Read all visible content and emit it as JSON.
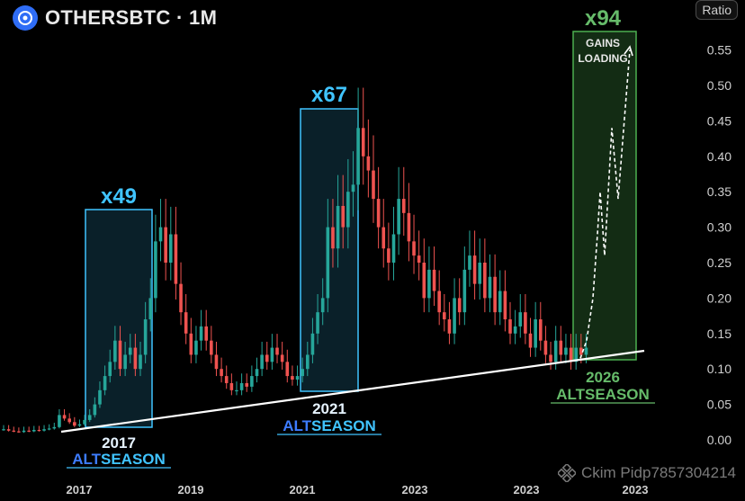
{
  "header": {
    "title": "OTHERSBTC · 1M",
    "scale_label": "Ratio"
  },
  "watermark": {
    "text": "Ckim Pidp7857304214"
  },
  "colors": {
    "background": "#000000",
    "up_candle": "#26a69a",
    "down_candle": "#ef5350",
    "trendline": "#ffffff",
    "cycle_box": "#40c4ff",
    "cycle_label": "#40c4ff",
    "future_box": "#4caf50",
    "future_label": "#66bb6a",
    "alt_word": "#3d7cff"
  },
  "chart_data": {
    "type": "candlestick",
    "title": "OTHERSBTC · 1M",
    "ylabel": "Ratio",
    "ylim": [
      0.0,
      0.6
    ],
    "y_ticks": [
      0.0,
      0.05,
      0.1,
      0.15,
      0.2,
      0.25,
      0.3,
      0.35,
      0.4,
      0.45,
      0.5,
      0.55
    ],
    "x_ticks": [
      "2017",
      "2019",
      "2021",
      "2023",
      "2023",
      "2023"
    ],
    "annotations": {
      "cycles": [
        {
          "multiplier": "x49",
          "year": "2017",
          "word_a": "ALT",
          "word_b": "SEASON"
        },
        {
          "multiplier": "x67",
          "year": "2021",
          "word_a": "ALT",
          "word_b": "SEASON"
        },
        {
          "multiplier": "x94",
          "year": "2026",
          "word_a": "ALT",
          "word_b": "SEASON",
          "note": "GAINS LOADING"
        }
      ]
    },
    "trendline": {
      "start": 0.01,
      "end": 0.125
    },
    "projection": [
      0.115,
      0.14,
      0.2,
      0.29,
      0.35,
      0.26,
      0.44,
      0.34,
      0.55
    ],
    "series_close": [
      0.015,
      0.013,
      0.012,
      0.011,
      0.013,
      0.012,
      0.014,
      0.013,
      0.015,
      0.016,
      0.018,
      0.035,
      0.03,
      0.025,
      0.02,
      0.022,
      0.028,
      0.035,
      0.05,
      0.07,
      0.09,
      0.11,
      0.14,
      0.1,
      0.12,
      0.13,
      0.1,
      0.12,
      0.17,
      0.2,
      0.28,
      0.3,
      0.25,
      0.29,
      0.22,
      0.18,
      0.15,
      0.12,
      0.14,
      0.16,
      0.14,
      0.12,
      0.1,
      0.09,
      0.08,
      0.07,
      0.07,
      0.08,
      0.075,
      0.09,
      0.1,
      0.12,
      0.11,
      0.13,
      0.12,
      0.11,
      0.09,
      0.085,
      0.09,
      0.1,
      0.12,
      0.15,
      0.18,
      0.2,
      0.3,
      0.27,
      0.33,
      0.3,
      0.35,
      0.36,
      0.44,
      0.4,
      0.38,
      0.34,
      0.3,
      0.27,
      0.25,
      0.29,
      0.34,
      0.32,
      0.28,
      0.26,
      0.25,
      0.2,
      0.24,
      0.21,
      0.18,
      0.17,
      0.15,
      0.2,
      0.18,
      0.24,
      0.26,
      0.22,
      0.25,
      0.2,
      0.23,
      0.18,
      0.21,
      0.17,
      0.15,
      0.16,
      0.18,
      0.15,
      0.13,
      0.17,
      0.14,
      0.12,
      0.11,
      0.14,
      0.12,
      0.13,
      0.11,
      0.13,
      0.12,
      0.13
    ]
  }
}
